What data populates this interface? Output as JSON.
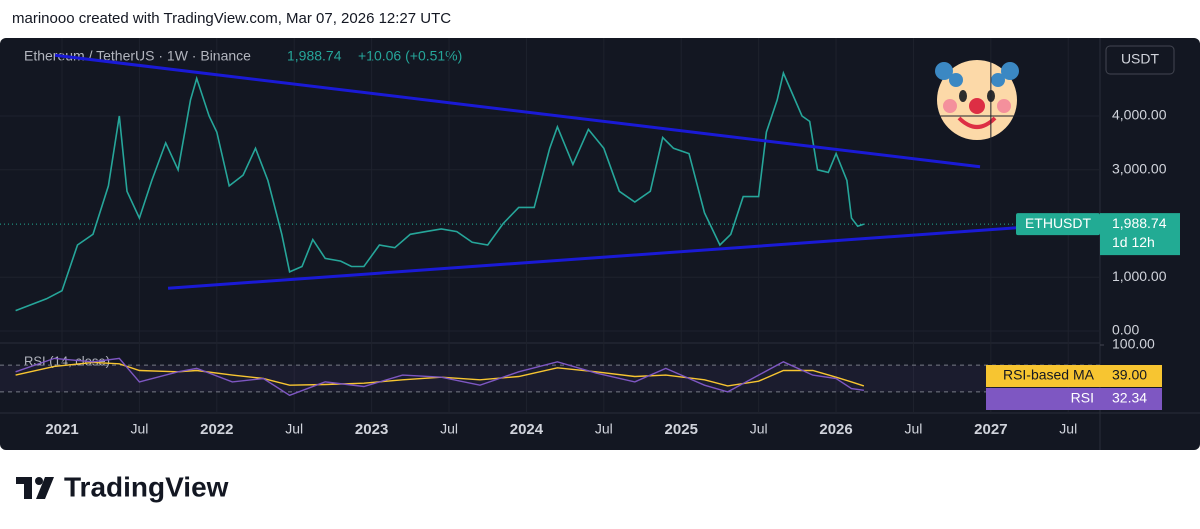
{
  "header": "marinooo created with TradingView.com, Mar 07, 2026 12:27 UTC",
  "footer": "TradingView",
  "chart_data": [
    {
      "type": "line",
      "title": "Ethereum / TetherUS · 1W · Binance",
      "last": "1,988.74",
      "change": "+10.06 (+0.51%)",
      "currency": "USDT",
      "color": "#26a69a",
      "x": [
        2020.7,
        2020.9,
        2021.0,
        2021.1,
        2021.2,
        2021.3,
        2021.37,
        2021.42,
        2021.5,
        2021.58,
        2021.67,
        2021.75,
        2021.83,
        2021.87,
        2021.95,
        2022.0,
        2022.08,
        2022.17,
        2022.25,
        2022.33,
        2022.42,
        2022.47,
        2022.55,
        2022.62,
        2022.7,
        2022.8,
        2022.87,
        2022.95,
        2023.05,
        2023.15,
        2023.25,
        2023.35,
        2023.45,
        2023.55,
        2023.65,
        2023.75,
        2023.85,
        2023.95,
        2024.05,
        2024.15,
        2024.2,
        2024.3,
        2024.4,
        2024.5,
        2024.6,
        2024.7,
        2024.8,
        2024.88,
        2024.95,
        2025.05,
        2025.15,
        2025.25,
        2025.32,
        2025.4,
        2025.5,
        2025.55,
        2025.62,
        2025.66,
        2025.72,
        2025.78,
        2025.83,
        2025.88,
        2025.95,
        2026.0,
        2026.07,
        2026.1,
        2026.14,
        2026.18
      ],
      "values": [
        380,
        600,
        750,
        1600,
        1800,
        2700,
        4000,
        2600,
        2100,
        2800,
        3500,
        3000,
        4300,
        4700,
        4000,
        3700,
        2700,
        2900,
        3400,
        2800,
        1800,
        1100,
        1200,
        1700,
        1350,
        1300,
        1200,
        1200,
        1600,
        1550,
        1800,
        1850,
        1900,
        1850,
        1650,
        1600,
        2000,
        2300,
        2300,
        3400,
        3800,
        3100,
        3750,
        3400,
        2600,
        2400,
        2600,
        3600,
        3400,
        3300,
        2200,
        1600,
        1800,
        2500,
        2500,
        3700,
        4300,
        4800,
        4400,
        4000,
        3900,
        3000,
        2950,
        3300,
        2800,
        2100,
        1950,
        1988.74
      ],
      "last_price": {
        "symbol": "ETHUSDT",
        "value": 1988.74,
        "label": "1,988.74",
        "countdown": "1d 12h",
        "color": "#22ab94"
      },
      "xlim": [
        2020.677,
        2027.705
      ],
      "xticks": [
        2021,
        {
          "value": 2021.5,
          "label": "Jul"
        },
        2022,
        {
          "value": 2022.5,
          "label": "Jul"
        },
        2023,
        {
          "value": 2023.5,
          "label": "Jul"
        },
        2024,
        {
          "value": 2024.5,
          "label": "Jul"
        },
        2025,
        {
          "value": 2025.5,
          "label": "Jul"
        },
        2026,
        {
          "value": 2026.5,
          "label": "Jul"
        },
        2027,
        {
          "value": 2027.5,
          "label": "Jul"
        }
      ],
      "ylim": [
        -223,
        5414
      ],
      "yticks": [
        {
          "value": 0,
          "label": "0.00"
        },
        {
          "value": 1000,
          "label": "1,000.00"
        },
        {
          "value": 3000,
          "label": "3,000.00"
        },
        {
          "value": 4000,
          "label": "4,000.00"
        }
      ],
      "grid": true,
      "trendlines": [
        {
          "color": "#1a1ad6",
          "x": [
            2020.955,
            2026.93
          ],
          "y": [
            5130,
            3056
          ]
        },
        {
          "color": "#1a1ad6",
          "x": [
            2021.685,
            2027.19
          ],
          "y": [
            796,
            1926
          ]
        }
      ]
    },
    {
      "type": "rsi",
      "title": "RSI (14, close)",
      "x": [
        2020.7,
        2020.95,
        2021.2,
        2021.37,
        2021.5,
        2021.75,
        2021.87,
        2022.1,
        2022.3,
        2022.47,
        2022.7,
        2022.95,
        2023.2,
        2023.45,
        2023.7,
        2023.95,
        2024.2,
        2024.45,
        2024.7,
        2024.9,
        2025.15,
        2025.3,
        2025.5,
        2025.66,
        2025.85,
        2026.0,
        2026.1,
        2026.18
      ],
      "series": [
        {
          "name": "RSI-based MA",
          "color": "#f7c531",
          "values": [
            55,
            68,
            74,
            72,
            62,
            60,
            62,
            55,
            50,
            40,
            41,
            43,
            48,
            52,
            48,
            53,
            66,
            60,
            53,
            55,
            48,
            39,
            46,
            62,
            62,
            52,
            45,
            39
          ],
          "last_label": "39.00"
        },
        {
          "name": "RSI",
          "color": "#7e57c2",
          "values": [
            60,
            80,
            75,
            80,
            45,
            60,
            65,
            45,
            50,
            25,
            45,
            38,
            55,
            52,
            40,
            60,
            75,
            58,
            45,
            65,
            40,
            30,
            55,
            75,
            55,
            50,
            35,
            32.34
          ],
          "last_label": "32.34"
        }
      ],
      "ylim": [
        0,
        100
      ],
      "yticks": [
        {
          "value": 100,
          "label": "100.00"
        }
      ],
      "bands": [
        30,
        70
      ]
    }
  ]
}
